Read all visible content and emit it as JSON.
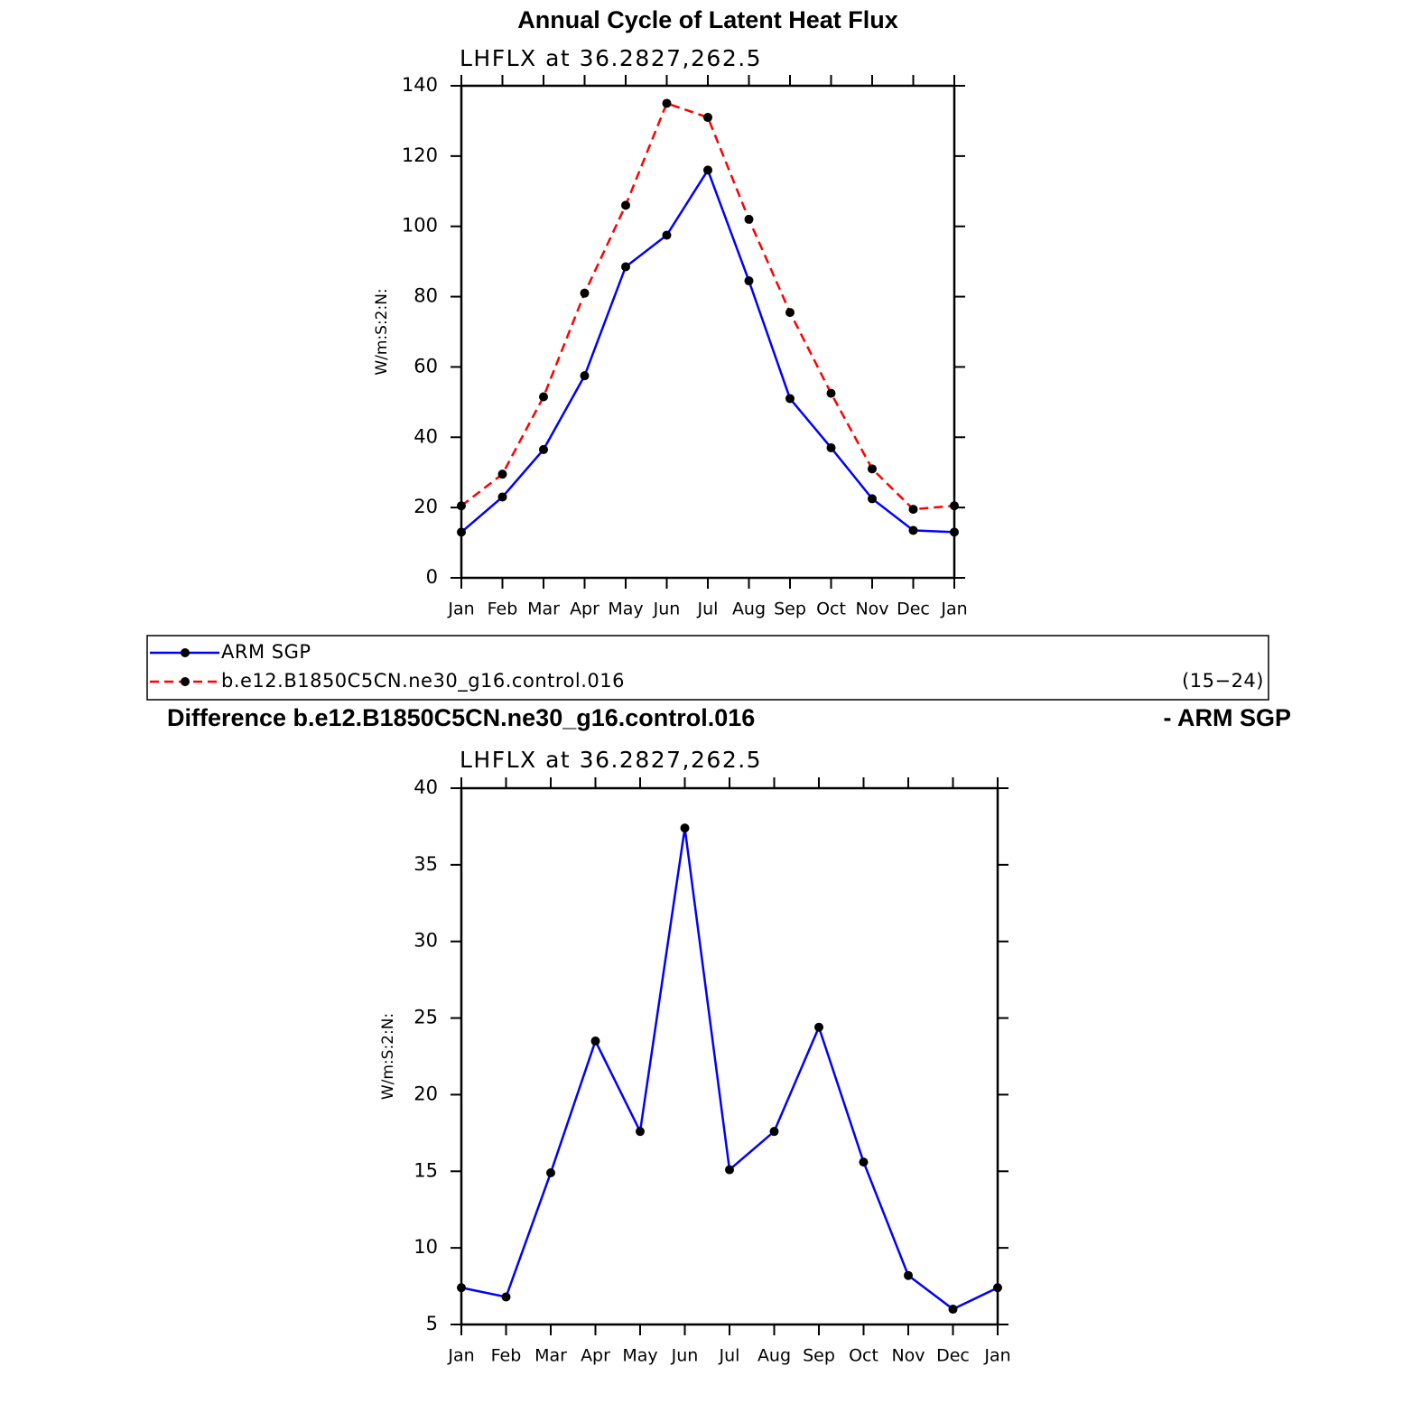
{
  "chart_data": [
    {
      "type": "line",
      "title": "Annual Cycle of Latent Heat Flux",
      "subtitle": "LHFLX at 36.2827,262.5",
      "y_label": "W/m:S:2:N:",
      "categories": [
        "Jan",
        "Feb",
        "Mar",
        "Apr",
        "May",
        "Jun",
        "Jul",
        "Aug",
        "Sep",
        "Oct",
        "Nov",
        "Dec",
        "Jan"
      ],
      "ylim": [
        0,
        140
      ],
      "yticks": [
        0,
        20,
        40,
        60,
        80,
        100,
        120,
        140
      ],
      "markers": true,
      "series": [
        {
          "name": "ARM SGP",
          "color": "#0000ff",
          "dash": false,
          "values": [
            13,
            23,
            36.5,
            57.5,
            88.5,
            97.5,
            116,
            84.5,
            51,
            37,
            22.5,
            13.5,
            13
          ]
        },
        {
          "name": "b.e12.B1850C5CN.ne30_g16.control.016",
          "color": "#ff0000",
          "dash": true,
          "values": [
            20.5,
            29.5,
            51.5,
            81,
            106,
            135,
            131,
            102,
            75.5,
            52.5,
            31,
            19.5,
            20.5
          ]
        }
      ],
      "legend_note": "(15−24)"
    },
    {
      "type": "line",
      "title": "Difference b.e12.B1850C5CN.ne30_g16.control.016",
      "title_right": "- ARM SGP",
      "subtitle": "LHFLX at 36.2827,262.5",
      "y_label": "W/m:S:2:N:",
      "categories": [
        "Jan",
        "Feb",
        "Mar",
        "Apr",
        "May",
        "Jun",
        "Jul",
        "Aug",
        "Sep",
        "Oct",
        "Nov",
        "Dec",
        "Jan"
      ],
      "ylim": [
        5,
        40
      ],
      "yticks": [
        5,
        10,
        15,
        20,
        25,
        30,
        35,
        40
      ],
      "markers": true,
      "color": "#0000ff",
      "values": [
        7.4,
        6.8,
        14.9,
        23.5,
        17.6,
        37.4,
        15.1,
        17.6,
        24.4,
        15.6,
        8.2,
        6.0,
        7.4
      ]
    }
  ]
}
